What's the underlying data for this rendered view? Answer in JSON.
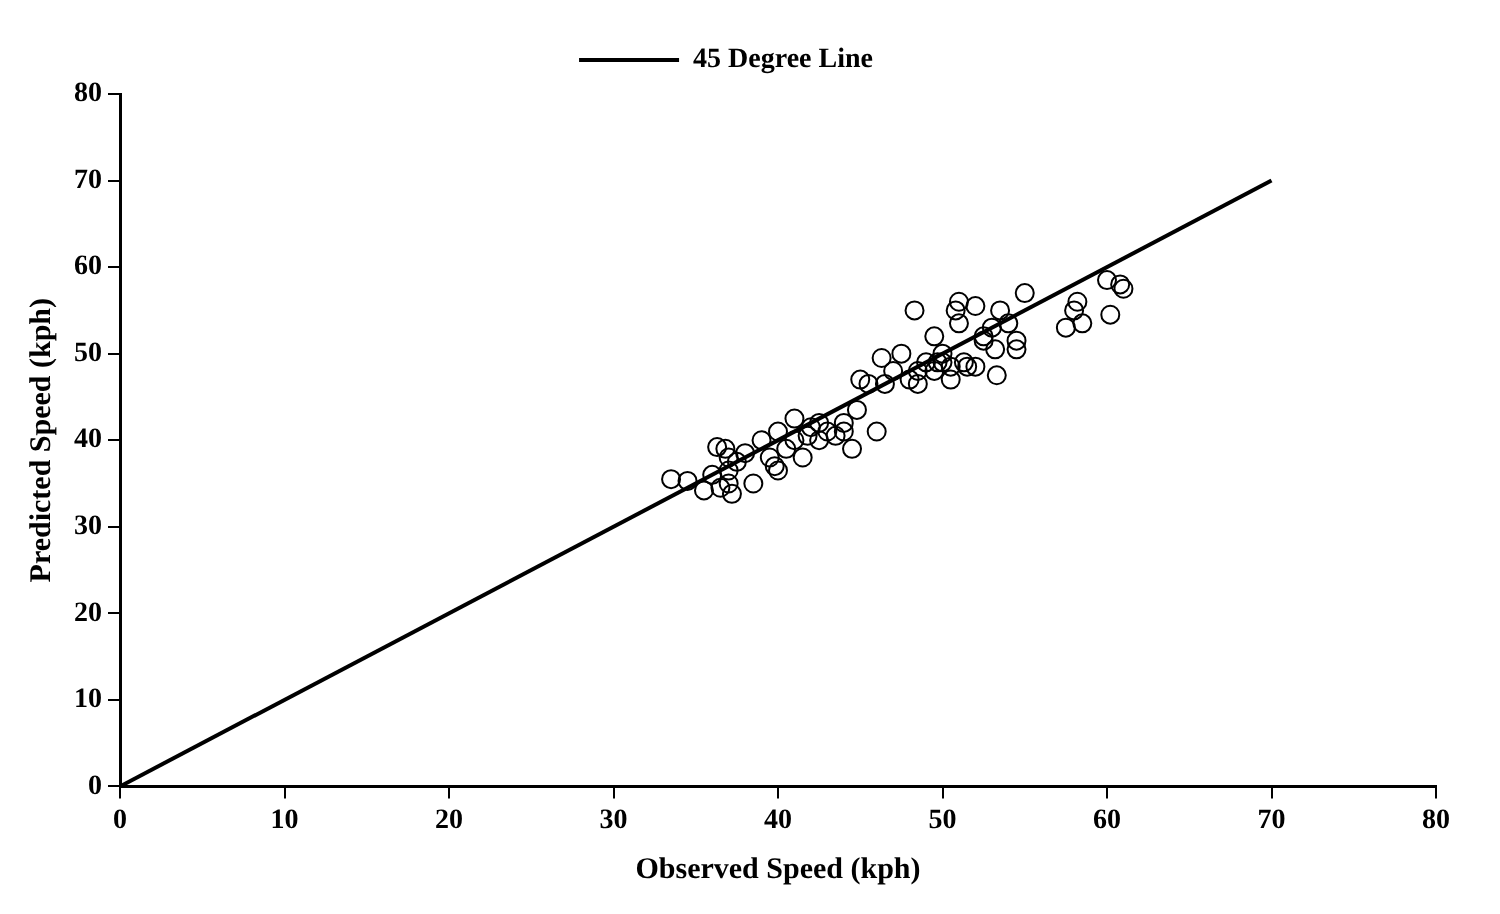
{
  "chart_data": {
    "type": "scatter",
    "xlabel": "Observed Speed (kph)",
    "ylabel": "Predicted Speed (kph)",
    "xlim": [
      0,
      80
    ],
    "ylim": [
      0,
      80
    ],
    "xticks": [
      0,
      10,
      20,
      30,
      40,
      50,
      60,
      70,
      80
    ],
    "yticks": [
      0,
      10,
      20,
      30,
      40,
      50,
      60,
      70,
      80
    ],
    "grid": false,
    "legend": "top",
    "series": [
      {
        "marker": "circle",
        "color": "#000000",
        "x": [
          33.5,
          34.5,
          35.5,
          36,
          36.3,
          36.5,
          36.8,
          37,
          37,
          37,
          37.2,
          37.5,
          38,
          38.5,
          39,
          39.5,
          39.8,
          40,
          40,
          40.5,
          41,
          41,
          41.5,
          41.8,
          42,
          42.5,
          42.5,
          43,
          43.5,
          44,
          44,
          44.5,
          44.8,
          45,
          45.5,
          46,
          46.3,
          46.5,
          47,
          47.5,
          48,
          48.3,
          48.5,
          48.5,
          49,
          49.5,
          49.5,
          49.7,
          50,
          50,
          50.5,
          50.5,
          50.8,
          51,
          51,
          51.3,
          51.5,
          52,
          52,
          52.5,
          52.5,
          53,
          53.2,
          53.3,
          53.5,
          54,
          54.5,
          54.5,
          55,
          57.5,
          58,
          58.2,
          58.5,
          60,
          60.2,
          60.8,
          61
        ],
        "values": [
          35.5,
          35.3,
          34.2,
          36,
          39.2,
          34.5,
          39,
          38,
          36.5,
          35,
          33.8,
          37.5,
          38.5,
          35,
          40,
          38,
          37,
          36.5,
          41,
          39,
          42.5,
          40,
          38,
          40.5,
          41.5,
          42,
          40,
          41,
          40.5,
          42,
          41,
          39,
          43.5,
          47,
          46.5,
          41,
          49.5,
          46.5,
          48,
          50,
          47,
          55,
          48,
          46.5,
          49,
          48,
          52,
          49,
          50,
          49,
          48.5,
          47,
          55,
          56,
          53.5,
          49,
          48.5,
          55.5,
          48.5,
          51.5,
          52,
          53,
          50.5,
          47.5,
          55,
          53.5,
          51.5,
          50.5,
          57,
          53,
          55,
          56,
          53.5,
          58.5,
          54.5,
          58,
          57.5
        ]
      },
      {
        "type": "line",
        "name": "45 Degree Line",
        "color": "#000000",
        "line_style": "solid",
        "marker": "none",
        "x": [
          0,
          70
        ],
        "values": [
          0,
          70
        ]
      }
    ]
  }
}
